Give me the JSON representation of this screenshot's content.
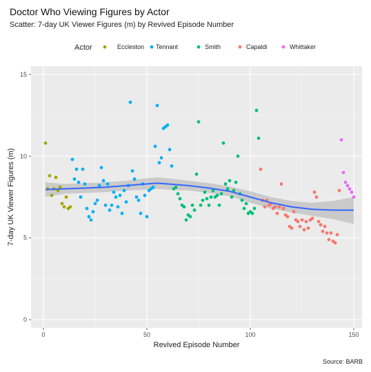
{
  "title": "Doctor Who Viewing Figures by Actor",
  "subtitle": "Scatter: 7-day UK Viewer Figures (m) by Revived Episode Number",
  "caption": "Source: BARB",
  "chart_data": {
    "type": "scatter",
    "xlabel": "Revived Episode Number",
    "ylabel": "7-day UK Viewer Figures (m)",
    "xlim": [
      -6,
      154
    ],
    "ylim": [
      -0.5,
      15.5
    ],
    "xticks": [
      0,
      50,
      100,
      150
    ],
    "yticks": [
      0,
      5,
      10,
      15
    ],
    "grid": true,
    "legend": {
      "title": "Actor",
      "position": "top"
    },
    "series": [
      {
        "name": "Eccleston",
        "color": "#A3A500",
        "points": [
          [
            1,
            10.8
          ],
          [
            2,
            8.0
          ],
          [
            3,
            8.8
          ],
          [
            4,
            7.6
          ],
          [
            5,
            8.0
          ],
          [
            6,
            8.7
          ],
          [
            7,
            7.9
          ],
          [
            8,
            8.1
          ],
          [
            9,
            7.1
          ],
          [
            10,
            6.9
          ],
          [
            11,
            7.5
          ],
          [
            12,
            6.8
          ],
          [
            13,
            6.9
          ]
        ]
      },
      {
        "name": "Tennant",
        "color": "#00B0F6",
        "points": [
          [
            14,
            9.8
          ],
          [
            15,
            8.6
          ],
          [
            16,
            9.2
          ],
          [
            17,
            8.4
          ],
          [
            18,
            7.5
          ],
          [
            19,
            9.2
          ],
          [
            20,
            8.3
          ],
          [
            21,
            6.8
          ],
          [
            22,
            6.3
          ],
          [
            23,
            6.1
          ],
          [
            24,
            6.6
          ],
          [
            25,
            7.1
          ],
          [
            26,
            7.3
          ],
          [
            27,
            8.2
          ],
          [
            28,
            9.3
          ],
          [
            29,
            8.5
          ],
          [
            30,
            7.0
          ],
          [
            31,
            8.3
          ],
          [
            32,
            6.7
          ],
          [
            33,
            7.0
          ],
          [
            34,
            7.8
          ],
          [
            35,
            7.5
          ],
          [
            36,
            6.9
          ],
          [
            37,
            7.6
          ],
          [
            38,
            6.5
          ],
          [
            39,
            7.9
          ],
          [
            40,
            7.2
          ],
          [
            41,
            8.2
          ],
          [
            42,
            13.3
          ],
          [
            43,
            9.1
          ],
          [
            44,
            8.6
          ],
          [
            45,
            7.5
          ],
          [
            46,
            7.3
          ],
          [
            47,
            6.5
          ],
          [
            48,
            8.3
          ],
          [
            49,
            7.6
          ],
          [
            50,
            6.3
          ],
          [
            51,
            7.9
          ],
          [
            52,
            8.0
          ],
          [
            53,
            8.1
          ],
          [
            54,
            10.6
          ],
          [
            55,
            13.1
          ],
          [
            56,
            9.6
          ],
          [
            57,
            9.9
          ],
          [
            58,
            11.7
          ],
          [
            59,
            11.8
          ],
          [
            60,
            11.9
          ],
          [
            61,
            10.4
          ],
          [
            62,
            9.4
          ]
        ]
      },
      {
        "name": "Smith",
        "color": "#00BF7D",
        "points": [
          [
            63,
            8.0
          ],
          [
            64,
            8.1
          ],
          [
            65,
            7.7
          ],
          [
            66,
            7.4
          ],
          [
            67,
            7.0
          ],
          [
            68,
            6.9
          ],
          [
            69,
            6.1
          ],
          [
            70,
            6.4
          ],
          [
            71,
            6.3
          ],
          [
            72,
            7.0
          ],
          [
            73,
            6.7
          ],
          [
            74,
            8.9
          ],
          [
            75,
            12.1
          ],
          [
            76,
            7.0
          ],
          [
            77,
            7.3
          ],
          [
            78,
            7.8
          ],
          [
            79,
            7.4
          ],
          [
            80,
            7.0
          ],
          [
            81,
            7.5
          ],
          [
            82,
            7.9
          ],
          [
            83,
            7.5
          ],
          [
            84,
            7.6
          ],
          [
            85,
            7.0
          ],
          [
            86,
            7.7
          ],
          [
            87,
            10.8
          ],
          [
            88,
            8.3
          ],
          [
            89,
            8.0
          ],
          [
            90,
            8.5
          ],
          [
            91,
            7.5
          ],
          [
            92,
            7.9
          ],
          [
            93,
            8.4
          ],
          [
            94,
            10.0
          ],
          [
            95,
            7.7
          ],
          [
            96,
            7.3
          ],
          [
            97,
            6.8
          ],
          [
            98,
            7.1
          ],
          [
            99,
            6.5
          ],
          [
            100,
            6.6
          ],
          [
            101,
            6.5
          ],
          [
            102,
            6.8
          ],
          [
            103,
            12.8
          ],
          [
            104,
            11.1
          ]
        ]
      },
      {
        "name": "Capaldi",
        "color": "#F8766D",
        "points": [
          [
            105,
            9.2
          ],
          [
            106,
            7.3
          ],
          [
            107,
            6.9
          ],
          [
            108,
            7.3
          ],
          [
            109,
            7.0
          ],
          [
            110,
            7.1
          ],
          [
            111,
            6.8
          ],
          [
            112,
            6.9
          ],
          [
            113,
            6.5
          ],
          [
            114,
            6.9
          ],
          [
            115,
            8.3
          ],
          [
            116,
            6.8
          ],
          [
            117,
            6.4
          ],
          [
            118,
            6.3
          ],
          [
            119,
            5.7
          ],
          [
            120,
            5.6
          ],
          [
            121,
            6.6
          ],
          [
            122,
            6.1
          ],
          [
            123,
            6.0
          ],
          [
            124,
            5.7
          ],
          [
            125,
            6.1
          ],
          [
            126,
            5.5
          ],
          [
            127,
            6.0
          ],
          [
            128,
            5.6
          ],
          [
            129,
            6.1
          ],
          [
            130,
            6.2
          ],
          [
            131,
            7.8
          ],
          [
            132,
            7.5
          ],
          [
            133,
            6.0
          ],
          [
            134,
            5.8
          ],
          [
            135,
            5.4
          ],
          [
            136,
            5.7
          ],
          [
            137,
            5.3
          ],
          [
            138,
            4.9
          ],
          [
            139,
            5.3
          ],
          [
            140,
            4.8
          ],
          [
            141,
            4.7
          ],
          [
            142,
            5.2
          ],
          [
            143,
            7.9
          ]
        ]
      },
      {
        "name": "Whittaker",
        "color": "#E76BF3",
        "points": [
          [
            144,
            11.0
          ],
          [
            145,
            9.0
          ],
          [
            146,
            8.4
          ],
          [
            147,
            8.2
          ],
          [
            148,
            8.0
          ],
          [
            149,
            7.8
          ],
          [
            150,
            7.5
          ]
        ]
      }
    ],
    "smooth": {
      "color": "#3366FF",
      "points": [
        [
          1,
          7.96
        ],
        [
          10,
          8.0
        ],
        [
          20,
          8.05
        ],
        [
          30,
          8.1
        ],
        [
          40,
          8.2
        ],
        [
          50,
          8.3
        ],
        [
          55,
          8.35
        ],
        [
          60,
          8.3
        ],
        [
          70,
          8.2
        ],
        [
          80,
          8.05
        ],
        [
          90,
          7.85
        ],
        [
          100,
          7.5
        ],
        [
          110,
          7.15
        ],
        [
          120,
          6.9
        ],
        [
          130,
          6.75
        ],
        [
          140,
          6.7
        ],
        [
          150,
          6.7
        ]
      ],
      "upper": [
        [
          1,
          8.4
        ],
        [
          10,
          8.3
        ],
        [
          20,
          8.35
        ],
        [
          30,
          8.4
        ],
        [
          40,
          8.5
        ],
        [
          50,
          8.65
        ],
        [
          55,
          8.7
        ],
        [
          60,
          8.65
        ],
        [
          70,
          8.5
        ],
        [
          80,
          8.35
        ],
        [
          90,
          8.15
        ],
        [
          100,
          7.85
        ],
        [
          110,
          7.5
        ],
        [
          120,
          7.25
        ],
        [
          130,
          7.15
        ],
        [
          140,
          7.25
        ],
        [
          150,
          7.5
        ]
      ],
      "lower": [
        [
          1,
          7.5
        ],
        [
          10,
          7.7
        ],
        [
          20,
          7.75
        ],
        [
          30,
          7.8
        ],
        [
          40,
          7.9
        ],
        [
          50,
          7.95
        ],
        [
          55,
          8.0
        ],
        [
          60,
          7.95
        ],
        [
          70,
          7.9
        ],
        [
          80,
          7.75
        ],
        [
          90,
          7.55
        ],
        [
          100,
          7.15
        ],
        [
          110,
          6.8
        ],
        [
          120,
          6.55
        ],
        [
          130,
          6.35
        ],
        [
          140,
          6.15
        ],
        [
          150,
          5.85
        ]
      ]
    }
  }
}
